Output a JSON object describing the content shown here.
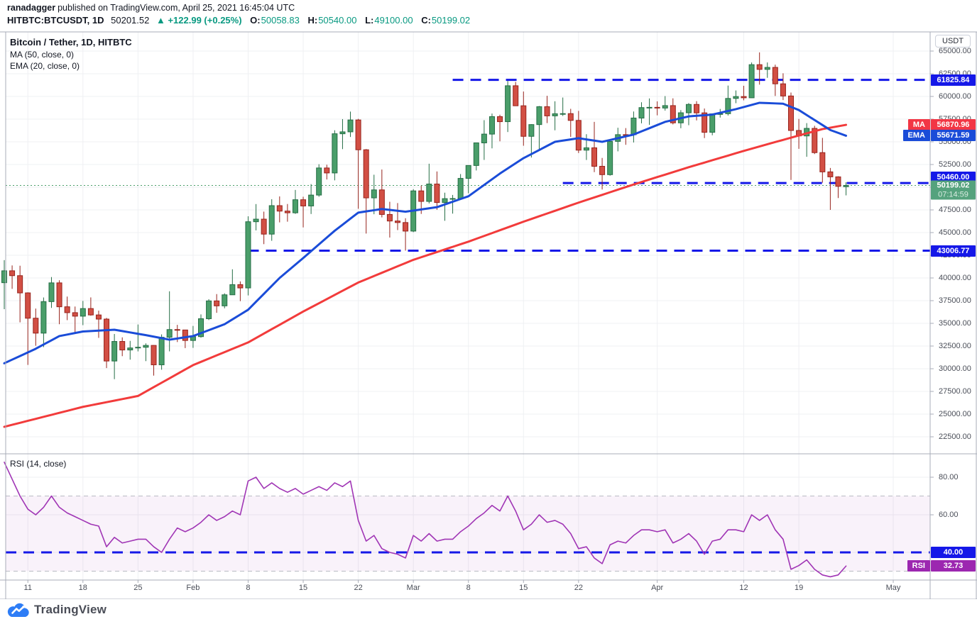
{
  "header": {
    "byline_author": "ranadagger",
    "byline_rest": "published on TradingView.com, April 25, 2021 16:45:04 UTC",
    "symbol": "HITBTC:BTCUSDT, 1D",
    "last_price": "50201.52",
    "change": "▲ +122.99 (+0.25%)",
    "ohlc": [
      {
        "label": "O:",
        "value": "50058.83"
      },
      {
        "label": "H:",
        "value": "50540.00"
      },
      {
        "label": "L:",
        "value": "49100.00"
      },
      {
        "label": "C:",
        "value": "50199.02"
      }
    ]
  },
  "legend": {
    "title": "Bitcoin / Tether, 1D, HITBTC",
    "ma": "MA (50, close, 0)",
    "ema": "EMA (20, close, 0)",
    "rsi": "RSI (14, close)"
  },
  "axis": {
    "currency_button": "USDT",
    "price_labels": [
      "65000.00",
      "62500.00",
      "60000.00",
      "57500.00",
      "55000.00",
      "52500.00",
      "50000.00",
      "47500.00",
      "45000.00",
      "42500.00",
      "40000.00",
      "37500.00",
      "35000.00",
      "32500.00",
      "30000.00",
      "27500.00",
      "25000.00",
      "22500.00"
    ],
    "rsi_labels": [
      "80.00",
      "60.00"
    ]
  },
  "badges": {
    "ma_tag": "MA",
    "ma_value": "56870.96",
    "ema_tag": "EMA",
    "ema_value": "55671.59",
    "rsi_tag": "RSI",
    "rsi_value": "32.73",
    "level_values": [
      "61825.84",
      "50460.00",
      "43006.77"
    ],
    "rsi_level_value": "40.00",
    "current_price": "50199.02",
    "countdown": "07:14:59"
  },
  "footer": {
    "logo_text": "TradingView"
  },
  "colors": {
    "teal_text": "#089981",
    "up_fill": "#4a9e6a",
    "up_border": "#266e46",
    "down_fill": "#d24f44",
    "down_border": "#97241d",
    "ma_line": "#f23b3b",
    "ma_badge": "#f23645",
    "ema_line": "#1a4cd8",
    "ema_badge": "#1a4cd8",
    "level_blue": "#1518e8",
    "current_badge": "#55a27d",
    "current_line": "#4a9e6a",
    "rsi_line": "#a035b5",
    "rsi_badge": "#9c27b0",
    "band_fill": "rgba(156,39,176,0.06)",
    "band_edge": "#b9bcc4",
    "grid": "#eff0f3",
    "frame": "#a9adb8",
    "logo_blue": "#2e7df6"
  },
  "chart_data": {
    "type": "candlestick",
    "title": "Bitcoin / Tether, 1D, HITBTC",
    "interval": "1D",
    "price_axis": {
      "ylim": [
        20600,
        67100
      ],
      "tick_step": 2500,
      "tick_min": 22500,
      "tick_max": 65000
    },
    "rsi_axis": {
      "ylim": [
        25,
        92
      ],
      "ticks": [
        80,
        60,
        40
      ],
      "band": [
        30,
        70
      ]
    },
    "start_date": "2021-01-08",
    "candles": [
      [
        "2021-01-08",
        39480,
        41960,
        36565,
        40790
      ],
      [
        "2021-01-09",
        40790,
        41380,
        38800,
        40254
      ],
      [
        "2021-01-10",
        40254,
        41350,
        35111,
        38356
      ],
      [
        "2021-01-11",
        38356,
        38419,
        30420,
        35566
      ],
      [
        "2021-01-12",
        35566,
        36628,
        32531,
        33922
      ],
      [
        "2021-01-13",
        33922,
        37850,
        32380,
        37393
      ],
      [
        "2021-01-14",
        37393,
        40100,
        36701,
        39461
      ],
      [
        "2021-01-15",
        39461,
        39748,
        34904,
        36825
      ],
      [
        "2021-01-16",
        36825,
        37950,
        35351,
        36178
      ],
      [
        "2021-01-17",
        36178,
        36852,
        33850,
        35791
      ],
      [
        "2021-01-18",
        35791,
        37470,
        34800,
        36630
      ],
      [
        "2021-01-19",
        36630,
        37857,
        35844,
        35927
      ],
      [
        "2021-01-20",
        35927,
        36400,
        33400,
        35468
      ],
      [
        "2021-01-21",
        35468,
        35600,
        30071,
        30850
      ],
      [
        "2021-01-22",
        30850,
        33826,
        28850,
        33005
      ],
      [
        "2021-01-23",
        33005,
        33456,
        31384,
        32067
      ],
      [
        "2021-01-24",
        32067,
        33071,
        31000,
        32289
      ],
      [
        "2021-01-25",
        32289,
        34875,
        31910,
        32366
      ],
      [
        "2021-01-26",
        32366,
        32794,
        30837,
        32569
      ],
      [
        "2021-01-27",
        32569,
        32600,
        29241,
        30432
      ],
      [
        "2021-01-28",
        30432,
        33783,
        29891,
        33466
      ],
      [
        "2021-01-29",
        33466,
        38531,
        31915,
        34316
      ],
      [
        "2021-01-30",
        34316,
        34834,
        32940,
        34269
      ],
      [
        "2021-01-31",
        34269,
        34288,
        32270,
        33114
      ],
      [
        "2021-02-01",
        33114,
        34717,
        32296,
        33537
      ],
      [
        "2021-02-02",
        33537,
        35984,
        33418,
        35510
      ],
      [
        "2021-02-03",
        35510,
        37662,
        35362,
        37472
      ],
      [
        "2021-02-04",
        37472,
        38225,
        36161,
        36926
      ],
      [
        "2021-02-05",
        36926,
        38310,
        36658,
        38144
      ],
      [
        "2021-02-06",
        38144,
        40955,
        38138,
        39266
      ],
      [
        "2021-02-07",
        39266,
        39621,
        37446,
        38903
      ],
      [
        "2021-02-08",
        38903,
        46794,
        38076,
        46196
      ],
      [
        "2021-02-09",
        46196,
        48142,
        45242,
        46481
      ],
      [
        "2021-02-10",
        46481,
        47310,
        43727,
        44830
      ],
      [
        "2021-02-11",
        44830,
        48678,
        44096,
        47969
      ],
      [
        "2021-02-12",
        47969,
        48985,
        46126,
        47366
      ],
      [
        "2021-02-13",
        47366,
        48150,
        46202,
        47180
      ],
      [
        "2021-02-14",
        47180,
        49700,
        47061,
        48620
      ],
      [
        "2021-02-15",
        48620,
        48947,
        45570,
        47934
      ],
      [
        "2021-02-16",
        47934,
        50341,
        47046,
        49133
      ],
      [
        "2021-02-17",
        49133,
        52533,
        48947,
        52119
      ],
      [
        "2021-02-18",
        52119,
        52477,
        50850,
        51571
      ],
      [
        "2021-02-19",
        51571,
        56274,
        50753,
        55888
      ],
      [
        "2021-02-20",
        55888,
        57505,
        54195,
        56099
      ],
      [
        "2021-02-21",
        56099,
        58330,
        55533,
        57408
      ],
      [
        "2021-02-22",
        57408,
        57533,
        47622,
        54124
      ],
      [
        "2021-02-23",
        54124,
        54204,
        44892,
        48824
      ],
      [
        "2021-02-24",
        48824,
        51374,
        47021,
        49705
      ],
      [
        "2021-02-25",
        49705,
        51948,
        46674,
        46998
      ],
      [
        "2021-02-26",
        46998,
        48394,
        44454,
        46276
      ],
      [
        "2021-02-27",
        46276,
        48253,
        45269,
        46106
      ],
      [
        "2021-02-28",
        46106,
        46582,
        43017,
        45164
      ],
      [
        "2021-03-01",
        45164,
        49784,
        45045,
        49595
      ],
      [
        "2021-03-02",
        49595,
        50177,
        47056,
        48436
      ],
      [
        "2021-03-03",
        48436,
        52587,
        48213,
        50349
      ],
      [
        "2021-03-04",
        50349,
        51735,
        47511,
        48314
      ],
      [
        "2021-03-05",
        48314,
        49396,
        46300,
        48740
      ],
      [
        "2021-03-06",
        48740,
        49147,
        47089,
        48751
      ],
      [
        "2021-03-07",
        48751,
        51450,
        48751,
        50971
      ],
      [
        "2021-03-08",
        50971,
        52402,
        49328,
        52392
      ],
      [
        "2021-03-09",
        52392,
        54895,
        51845,
        54884
      ],
      [
        "2021-03-10",
        54884,
        57387,
        53005,
        55851
      ],
      [
        "2021-03-11",
        55851,
        58113,
        54279,
        57773
      ],
      [
        "2021-03-12",
        57773,
        57985,
        55055,
        57221
      ],
      [
        "2021-03-13",
        57221,
        61701,
        56078,
        61178
      ],
      [
        "2021-03-14",
        61178,
        61597,
        58966,
        58972
      ],
      [
        "2021-03-15",
        58972,
        60540,
        54568,
        55605
      ],
      [
        "2021-03-16",
        55605,
        56944,
        53271,
        56900
      ],
      [
        "2021-03-17",
        56900,
        58943,
        54155,
        58870
      ],
      [
        "2021-03-18",
        58870,
        60069,
        57063,
        57858
      ],
      [
        "2021-03-19",
        57858,
        59468,
        56272,
        58093
      ],
      [
        "2021-03-20",
        58093,
        59880,
        57845,
        58108
      ],
      [
        "2021-03-21",
        58108,
        58633,
        55539,
        57358
      ],
      [
        "2021-03-22",
        57358,
        58406,
        53764,
        54083
      ],
      [
        "2021-03-23",
        54083,
        55839,
        53000,
        54340
      ],
      [
        "2021-03-24",
        54340,
        57200,
        51660,
        52303
      ],
      [
        "2021-03-25",
        52303,
        53225,
        49750,
        51384
      ],
      [
        "2021-03-26",
        51384,
        55080,
        51267,
        55050
      ],
      [
        "2021-03-27",
        55050,
        56550,
        53950,
        55790
      ],
      [
        "2021-03-28",
        55790,
        56513,
        54671,
        55780
      ],
      [
        "2021-03-29",
        55780,
        58342,
        54927,
        57620
      ],
      [
        "2021-03-30",
        57620,
        59360,
        57037,
        58771
      ],
      [
        "2021-03-31",
        58771,
        59780,
        56867,
        58800
      ],
      [
        "2021-04-01",
        58800,
        59460,
        57919,
        58720
      ],
      [
        "2021-04-02",
        58720,
        60040,
        58441,
        58990
      ],
      [
        "2021-04-03",
        58990,
        59790,
        56919,
        57090
      ],
      [
        "2021-04-04",
        57090,
        58494,
        56500,
        58200
      ],
      [
        "2021-04-05",
        58200,
        59270,
        56832,
        59120
      ],
      [
        "2021-04-06",
        59120,
        59480,
        57360,
        58190
      ],
      [
        "2021-04-07",
        58190,
        58670,
        55412,
        56050
      ],
      [
        "2021-04-08",
        56050,
        58135,
        55722,
        58080
      ],
      [
        "2021-04-09",
        58080,
        58620,
        57670,
        58100
      ],
      [
        "2021-04-10",
        58100,
        61200,
        57900,
        59780
      ],
      [
        "2021-04-11",
        59780,
        60660,
        59255,
        59990
      ],
      [
        "2021-04-12",
        59990,
        61175,
        59572,
        59850
      ],
      [
        "2021-04-13",
        59850,
        63740,
        59830,
        63500
      ],
      [
        "2021-04-14",
        63500,
        64854,
        61300,
        62980
      ],
      [
        "2021-04-15",
        62980,
        63745,
        62050,
        63200
      ],
      [
        "2021-04-16",
        63200,
        63500,
        60050,
        61390
      ],
      [
        "2021-04-17",
        61390,
        62550,
        59600,
        60050
      ],
      [
        "2021-04-18",
        60050,
        60430,
        50800,
        56250
      ],
      [
        "2021-04-19",
        56250,
        57520,
        54226,
        55650
      ],
      [
        "2021-04-20",
        55650,
        57060,
        53350,
        56480
      ],
      [
        "2021-04-21",
        56480,
        56764,
        53650,
        53810
      ],
      [
        "2021-04-22",
        53810,
        55435,
        50500,
        51690
      ],
      [
        "2021-04-23",
        51690,
        52120,
        47500,
        51140
      ],
      [
        "2021-04-24",
        51140,
        51205,
        48805,
        50100
      ],
      [
        "2021-04-25",
        50059,
        50540,
        49100,
        50199
      ]
    ],
    "ma50_anchors": [
      [
        0,
        23600
      ],
      [
        10,
        25800
      ],
      [
        17,
        27000
      ],
      [
        24,
        30400
      ],
      [
        31,
        32900
      ],
      [
        38,
        36300
      ],
      [
        45,
        39500
      ],
      [
        52,
        42000
      ],
      [
        59,
        44000
      ],
      [
        66,
        46200
      ],
      [
        73,
        48300
      ],
      [
        80,
        50300
      ],
      [
        87,
        52200
      ],
      [
        94,
        54000
      ],
      [
        101,
        55700
      ],
      [
        104,
        56400
      ],
      [
        107,
        56870.96
      ]
    ],
    "ema20_anchors": [
      [
        0,
        30600
      ],
      [
        4,
        32200
      ],
      [
        7,
        33600
      ],
      [
        10,
        34100
      ],
      [
        14,
        34300
      ],
      [
        18,
        33700
      ],
      [
        21,
        33200
      ],
      [
        24,
        33600
      ],
      [
        28,
        34900
      ],
      [
        31,
        36500
      ],
      [
        35,
        40000
      ],
      [
        38,
        42200
      ],
      [
        42,
        45200
      ],
      [
        45,
        47200
      ],
      [
        48,
        47600
      ],
      [
        51,
        47300
      ],
      [
        55,
        47800
      ],
      [
        59,
        49000
      ],
      [
        63,
        51500
      ],
      [
        66,
        53200
      ],
      [
        70,
        55000
      ],
      [
        73,
        55400
      ],
      [
        76,
        55000
      ],
      [
        80,
        55800
      ],
      [
        84,
        57200
      ],
      [
        87,
        57800
      ],
      [
        90,
        58000
      ],
      [
        93,
        58600
      ],
      [
        96,
        59300
      ],
      [
        99,
        59200
      ],
      [
        101,
        58500
      ],
      [
        103,
        57400
      ],
      [
        105,
        56300
      ],
      [
        107,
        55671.59
      ]
    ],
    "rsi_values": [
      88,
      79,
      70,
      63,
      60,
      64,
      70,
      64,
      61,
      59,
      57,
      55,
      54,
      43,
      48,
      45,
      46,
      47,
      47,
      43,
      40,
      47,
      53,
      51,
      53,
      56,
      60,
      57,
      59,
      62,
      60,
      78,
      80,
      74,
      77,
      74,
      72,
      74,
      71,
      73,
      75,
      73,
      77,
      75,
      78,
      57,
      46,
      49,
      42,
      40,
      39,
      37,
      49,
      46,
      50,
      46,
      47,
      47,
      51,
      54,
      58,
      61,
      65,
      62,
      70,
      62,
      52,
      55,
      60,
      56,
      57,
      55,
      50,
      42,
      43,
      37,
      34,
      44,
      46,
      45,
      49,
      52,
      52,
      51,
      52,
      45,
      47,
      50,
      46,
      39,
      46,
      47,
      52,
      52,
      51,
      60,
      57,
      60,
      52,
      47,
      31,
      33,
      36,
      31,
      28,
      27,
      28,
      32.73
    ],
    "levels": [
      {
        "value": 61825.84,
        "from_day": 57,
        "style": "dashed"
      },
      {
        "value": 50460.0,
        "from_day": 71,
        "style": "dashed",
        "badge_shift": -8
      },
      {
        "value": 43006.77,
        "from_day": 31,
        "style": "dashed"
      }
    ],
    "rsi_level": {
      "value": 40,
      "style": "dashed"
    },
    "current_price": {
      "value": 50199.02,
      "countdown": "07:14:59"
    },
    "ma_last": 56870.96,
    "ema_last": 55671.59,
    "rsi_last": 32.73,
    "time_axis": {
      "ticks": [
        {
          "label": "11",
          "day": 3
        },
        {
          "label": "18",
          "day": 10
        },
        {
          "label": "25",
          "day": 17
        },
        {
          "label": "Feb",
          "day": 24
        },
        {
          "label": "8",
          "day": 31
        },
        {
          "label": "15",
          "day": 38
        },
        {
          "label": "22",
          "day": 45
        },
        {
          "label": "Mar",
          "day": 52
        },
        {
          "label": "8",
          "day": 59
        },
        {
          "label": "15",
          "day": 66
        },
        {
          "label": "22",
          "day": 73
        },
        {
          "label": "Apr",
          "day": 83
        },
        {
          "label": "12",
          "day": 94
        },
        {
          "label": "19",
          "day": 101
        },
        {
          "label": "May",
          "day": 113
        }
      ]
    }
  }
}
